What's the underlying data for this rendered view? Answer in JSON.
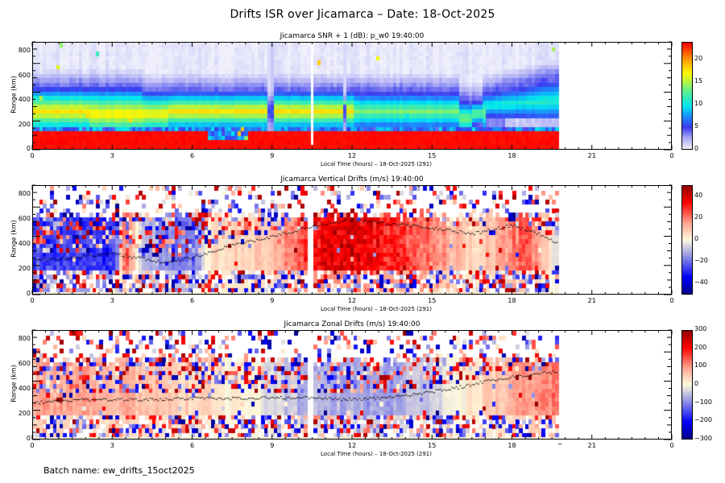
{
  "title": "Drifts ISR over Jicamarca – Date: 18-Oct-2025",
  "batch_label": "Batch name: ew_drifts_15oct2025",
  "chart_data": [
    {
      "type": "heatmap",
      "id": "snr",
      "title": "Jicamarca SNR + 1 (dB): p_w0 19:40:00",
      "xlabel": "Local Time (hours) – 18-Oct-2025 (291)",
      "ylabel": "Range (km)",
      "xlim": [
        0,
        24
      ],
      "ylim": [
        0,
        750
      ],
      "x_ticks": [
        "0",
        "3",
        "6",
        "9",
        "12",
        "15",
        "18",
        "21",
        "0"
      ],
      "y_ticks": [
        0,
        200,
        400,
        600,
        800
      ],
      "y_tick_labels": [
        "0",
        "200",
        "400",
        "600",
        "800"
      ],
      "data_end_hour": 19.7,
      "colorbar": {
        "min": 0,
        "max": 24,
        "ticks": [
          0,
          5,
          10,
          15,
          20
        ],
        "tick_labels": [
          "0",
          "5",
          "10",
          "15",
          "20"
        ],
        "colormap": "rainbow-white"
      },
      "features": {
        "saturated_below_km": 160,
        "layer_peak_km": 330,
        "layer_top_km": 520,
        "gap_hours": [
          10.35,
          10.5
        ],
        "thin_gaps_hours": [
          8.9,
          11.7
        ]
      }
    },
    {
      "type": "heatmap",
      "id": "vertical",
      "title": "Jicamarca Vertical Drifts (m/s) 19:40:00",
      "xlabel": "Local Time (hours) – 18-Oct-2025 (291)",
      "ylabel": "Range (km)",
      "xlim": [
        0,
        24
      ],
      "ylim": [
        0,
        750
      ],
      "x_ticks": [
        "0",
        "3",
        "6",
        "9",
        "12",
        "15",
        "18",
        "21",
        "0"
      ],
      "y_ticks": [
        0,
        200,
        400,
        600,
        800
      ],
      "y_tick_labels": [
        "0",
        "200",
        "400",
        "600",
        "800"
      ],
      "data_end_hour": 19.7,
      "colorbar": {
        "min": -50,
        "max": 50,
        "ticks": [
          -40,
          -20,
          0,
          20,
          40
        ],
        "tick_labels": [
          "−40",
          "−20",
          "0",
          "20",
          "40"
        ],
        "colormap": "blue-white-red"
      },
      "profile": [
        [
          0,
          -25
        ],
        [
          3,
          -30
        ],
        [
          3.4,
          30
        ],
        [
          4,
          -10
        ],
        [
          6,
          -20
        ],
        [
          6.6,
          5
        ],
        [
          9,
          10
        ],
        [
          10.5,
          35
        ],
        [
          12,
          40
        ],
        [
          15,
          20
        ],
        [
          16.5,
          5
        ],
        [
          18.5,
          25
        ],
        [
          19.7,
          -5
        ]
      ],
      "peak_height_km": [
        [
          0.5,
          280
        ],
        [
          2,
          310
        ],
        [
          3,
          330
        ],
        [
          5,
          250
        ],
        [
          6.5,
          330
        ],
        [
          7,
          370
        ],
        [
          9,
          470
        ],
        [
          10.5,
          550
        ],
        [
          12,
          610
        ],
        [
          13,
          580
        ],
        [
          15,
          540
        ],
        [
          16.5,
          490
        ],
        [
          18,
          560
        ],
        [
          19,
          490
        ],
        [
          19.7,
          420
        ]
      ]
    },
    {
      "type": "heatmap",
      "id": "zonal",
      "title": "Jicamarca Zonal Drifts (m/s) 19:40:00",
      "xlabel": "Local Time (hours) – 18-Oct-2025 (291)",
      "ylabel": "Range (km)",
      "xlim": [
        0,
        24
      ],
      "ylim": [
        0,
        750
      ],
      "x_ticks": [
        "0",
        "3",
        "6",
        "9",
        "12",
        "15",
        "18",
        "~",
        "21",
        "0"
      ],
      "y_ticks": [
        0,
        200,
        400,
        600,
        800
      ],
      "y_tick_labels": [
        "0",
        "200",
        "400",
        "600",
        "800"
      ],
      "data_end_hour": 19.7,
      "colorbar": {
        "min": -300,
        "max": 300,
        "ticks": [
          -300,
          -200,
          -100,
          0,
          100,
          200,
          300
        ],
        "tick_labels": [
          "−300",
          "−200",
          "−100",
          "0",
          "100",
          "200",
          "300"
        ],
        "colormap": "blue-white-red"
      },
      "profile": [
        [
          0,
          90
        ],
        [
          3,
          80
        ],
        [
          6,
          40
        ],
        [
          8,
          0
        ],
        [
          10,
          -60
        ],
        [
          13,
          -80
        ],
        [
          15,
          -40
        ],
        [
          16.5,
          20
        ],
        [
          18,
          80
        ],
        [
          19.7,
          130
        ]
      ],
      "peak_height_km": [
        [
          0.3,
          300
        ],
        [
          2,
          320
        ],
        [
          4,
          320
        ],
        [
          6,
          330
        ],
        [
          8,
          330
        ],
        [
          10,
          340
        ],
        [
          12,
          320
        ],
        [
          14,
          350
        ],
        [
          16,
          420
        ],
        [
          17,
          470
        ],
        [
          18.5,
          520
        ],
        [
          19.7,
          550
        ]
      ]
    }
  ]
}
